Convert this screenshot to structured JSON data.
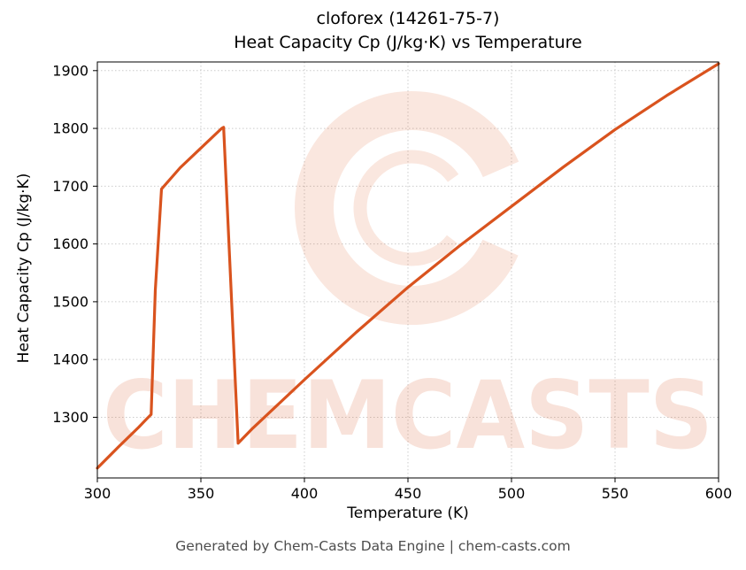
{
  "title_line1": "cloforex (14261-75-7)",
  "title_line2": "Heat Capacity Cp (J/kg·K) vs Temperature",
  "footer": "Generated by Chem-Casts Data Engine | chem-casts.com",
  "watermark": {
    "text": "CHEMCASTS"
  },
  "chart_data": {
    "type": "line",
    "title": "cloforex (14261-75-7) — Heat Capacity Cp (J/kg·K) vs Temperature",
    "xlabel": "Temperature (K)",
    "ylabel": "Heat Capacity Cp (J/kg·K)",
    "xlim": [
      300,
      600
    ],
    "ylim": [
      1195,
      1915
    ],
    "x_ticks": [
      300,
      350,
      400,
      450,
      500,
      550,
      600
    ],
    "y_ticks": [
      1300,
      1400,
      1500,
      1600,
      1700,
      1800,
      1900
    ],
    "grid": true,
    "legend": "none",
    "line_color": "#d9531e",
    "watermark_color": "#d9531e",
    "series": [
      {
        "name": "Heat Capacity Cp",
        "points": [
          [
            300,
            1212
          ],
          [
            310,
            1248
          ],
          [
            320,
            1283
          ],
          [
            324,
            1298
          ],
          [
            326,
            1305
          ],
          [
            328,
            1520
          ],
          [
            331,
            1695
          ],
          [
            340,
            1732
          ],
          [
            350,
            1766
          ],
          [
            360,
            1800
          ],
          [
            361,
            1802
          ],
          [
            368,
            1255
          ],
          [
            375,
            1281
          ],
          [
            400,
            1365
          ],
          [
            425,
            1447
          ],
          [
            450,
            1525
          ],
          [
            475,
            1597
          ],
          [
            500,
            1665
          ],
          [
            525,
            1733
          ],
          [
            550,
            1798
          ],
          [
            575,
            1857
          ],
          [
            600,
            1912
          ]
        ]
      }
    ]
  }
}
